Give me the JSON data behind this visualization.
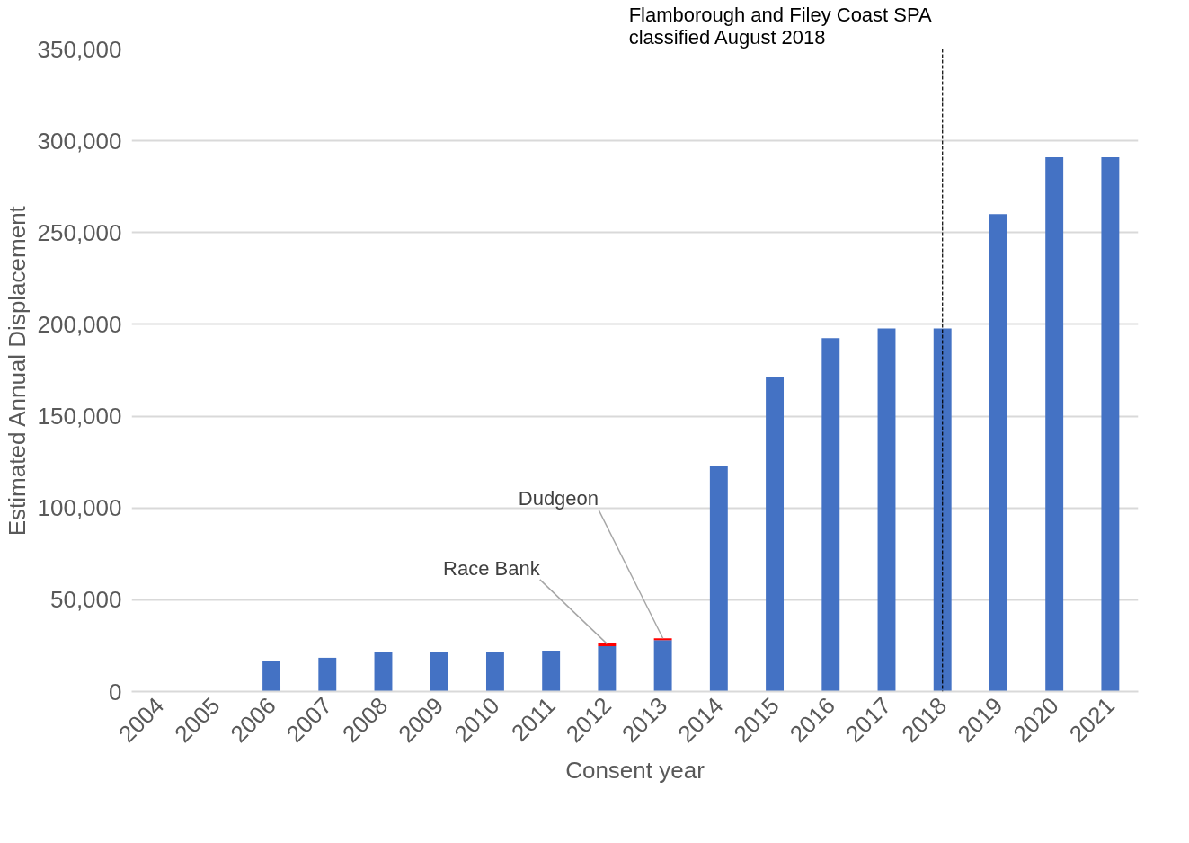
{
  "chart_data": {
    "type": "bar",
    "stacked": true,
    "xlabel": "Consent year",
    "ylabel": "Estimated Annual Displacement",
    "categories": [
      "2004",
      "2005",
      "2006",
      "2007",
      "2008",
      "2009",
      "2010",
      "2011",
      "2012",
      "2013",
      "2014",
      "2015",
      "2016",
      "2017",
      "2018",
      "2019",
      "2020",
      "2021"
    ],
    "series": [
      {
        "color": "#4472c4",
        "values": [
          0,
          0,
          16500,
          18400,
          21300,
          21300,
          21300,
          22300,
          24700,
          28000,
          123000,
          171600,
          192500,
          197800,
          197800,
          260000,
          291000,
          291000
        ]
      },
      {
        "color": "#ff0000",
        "values": [
          0,
          0,
          0,
          0,
          0,
          0,
          0,
          0,
          1500,
          1000,
          0,
          0,
          0,
          0,
          0,
          0,
          0,
          0
        ]
      }
    ],
    "ylim": [
      0,
      350000
    ],
    "yticks": [
      0,
      {
        "value": 50000,
        "label": "50,000"
      },
      {
        "value": 100000,
        "label": "100,000"
      },
      {
        "value": 150000,
        "label": "150,000"
      },
      {
        "value": 200000,
        "label": "200,000"
      },
      {
        "value": 250000,
        "label": "250,000"
      },
      {
        "value": 300000,
        "label": "300,000"
      },
      {
        "value": 350000,
        "label": "350,000"
      }
    ],
    "grid": "y",
    "ref_lines": [
      {
        "axis": "x",
        "value": "2018",
        "label": "Flamborough and Filey Coast SPA\nclassified August 2018",
        "color": "#000000",
        "line_style": "dashed"
      }
    ],
    "annotations": [
      {
        "text": "Race Bank",
        "x": "2012",
        "y": 26000
      },
      {
        "text": "Dudgeon",
        "x": "2013",
        "y": 29000
      }
    ]
  }
}
